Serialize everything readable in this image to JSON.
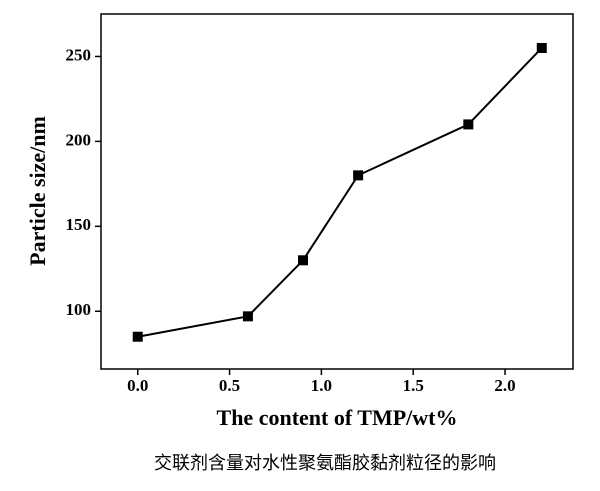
{
  "chart_data": {
    "type": "line",
    "caption": "交联剂含量对水性聚氨酯胶黏剂粒径的影响",
    "x_label": "The content of TMP/wt%",
    "y_label": "Particle size/nm",
    "x": [
      0,
      0.6,
      0.9,
      1.2,
      1.8,
      2.2
    ],
    "series": [
      {
        "color": "#000000",
        "values": [
          85,
          97,
          130,
          180,
          210,
          255
        ]
      }
    ],
    "xlim": [
      -0.2,
      2.37
    ],
    "xticks": [
      {
        "value": 0,
        "label": "0.0"
      },
      0.5,
      {
        "value": 1,
        "label": "1.0"
      },
      1.5,
      {
        "value": 2,
        "label": "2.0"
      }
    ],
    "ylim": [
      66,
      275
    ],
    "yticks": [
      100,
      150,
      200,
      250
    ],
    "grid": false
  }
}
